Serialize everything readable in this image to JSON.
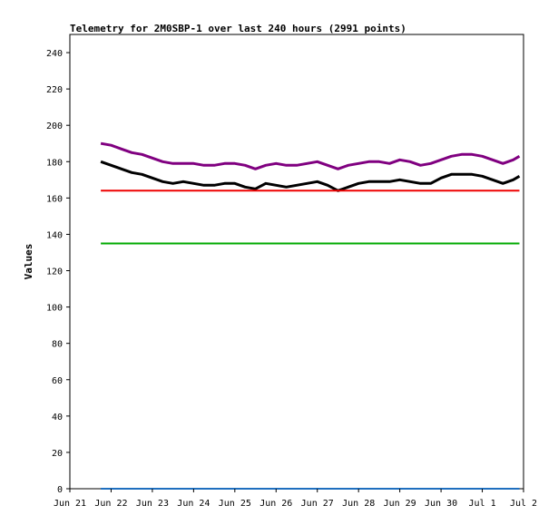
{
  "chart_data": {
    "type": "line",
    "title": "Telemetry for 2M0SBP-1 over last 240 hours (2991 points)",
    "xlabel": "",
    "ylabel": "Values",
    "xlim": [
      "Jun 21",
      "Jul 2"
    ],
    "ylim": [
      0,
      250
    ],
    "x_ticks": [
      "Jun 21",
      "Jun 22",
      "Jun 23",
      "Jun 24",
      "Jun 25",
      "Jun 26",
      "Jun 27",
      "Jun 28",
      "Jun 29",
      "Jun 30",
      "Jul 1",
      "Jul 2"
    ],
    "y_ticks": [
      0,
      20,
      40,
      60,
      80,
      100,
      120,
      140,
      160,
      180,
      200,
      220,
      240
    ],
    "grid": false,
    "series": [
      {
        "color": "#800080",
        "x": [
          0.75,
          1.0,
          1.25,
          1.5,
          1.75,
          2.0,
          2.25,
          2.5,
          2.75,
          3.0,
          3.25,
          3.5,
          3.75,
          4.0,
          4.25,
          4.5,
          4.75,
          5.0,
          5.25,
          5.5,
          5.75,
          6.0,
          6.25,
          6.5,
          6.75,
          7.0,
          7.25,
          7.5,
          7.75,
          8.0,
          8.25,
          8.5,
          8.75,
          9.0,
          9.25,
          9.5,
          9.75,
          10.0,
          10.25,
          10.5,
          10.75,
          10.9
        ],
        "y": [
          190,
          189,
          187,
          185,
          184,
          182,
          180,
          179,
          179,
          179,
          178,
          178,
          179,
          179,
          178,
          176,
          178,
          179,
          178,
          178,
          179,
          180,
          178,
          176,
          178,
          179,
          180,
          180,
          179,
          181,
          180,
          178,
          179,
          181,
          183,
          184,
          184,
          183,
          181,
          179,
          181,
          183
        ]
      },
      {
        "color": "#000000",
        "x": [
          0.75,
          1.0,
          1.25,
          1.5,
          1.75,
          2.0,
          2.25,
          2.5,
          2.75,
          3.0,
          3.25,
          3.5,
          3.75,
          4.0,
          4.25,
          4.5,
          4.75,
          5.0,
          5.25,
          5.5,
          5.75,
          6.0,
          6.25,
          6.5,
          6.75,
          7.0,
          7.25,
          7.5,
          7.75,
          8.0,
          8.25,
          8.5,
          8.75,
          9.0,
          9.25,
          9.5,
          9.75,
          10.0,
          10.25,
          10.5,
          10.75,
          10.9
        ],
        "y": [
          180,
          178,
          176,
          174,
          173,
          171,
          169,
          168,
          169,
          168,
          167,
          167,
          168,
          168,
          166,
          165,
          168,
          167,
          166,
          167,
          168,
          169,
          167,
          164,
          166,
          168,
          169,
          169,
          169,
          170,
          169,
          168,
          168,
          171,
          173,
          173,
          173,
          172,
          170,
          168,
          170,
          172
        ]
      },
      {
        "color": "#ee0000",
        "x": [
          0.75,
          10.9
        ],
        "y": [
          164,
          164
        ]
      },
      {
        "color": "#00aa00",
        "x": [
          0.75,
          10.9
        ],
        "y": [
          135,
          135
        ]
      },
      {
        "color": "#1f6fbf",
        "x": [
          0.75,
          10.9
        ],
        "y": [
          0,
          0
        ]
      }
    ]
  }
}
